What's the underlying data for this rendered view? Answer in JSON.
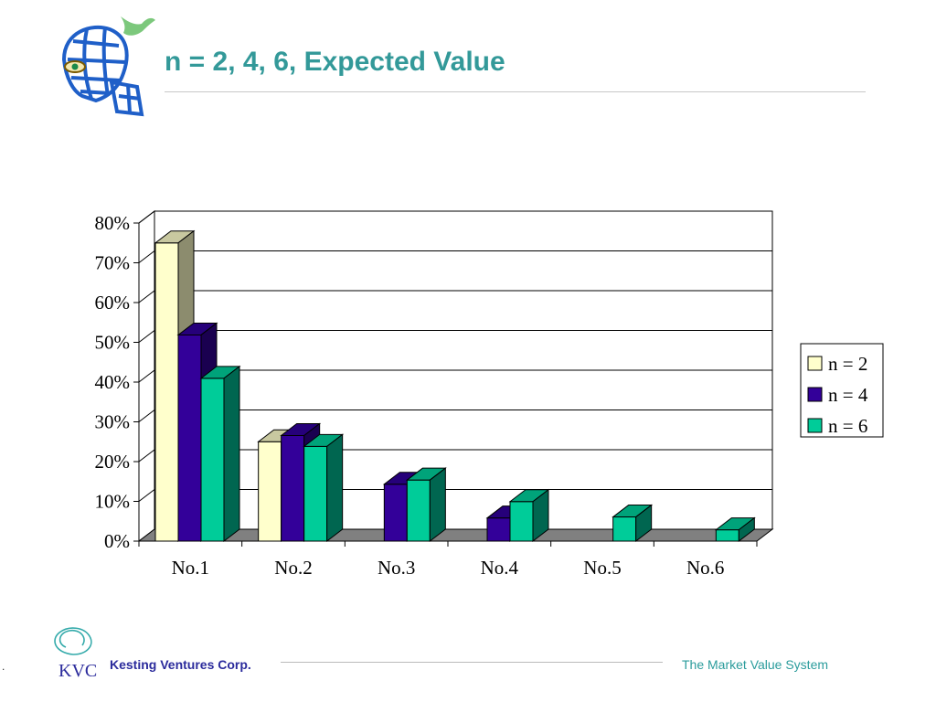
{
  "slide": {
    "title": "n = 2, 4, 6, Expected Value"
  },
  "footer": {
    "marker": ".",
    "company": "Kesting Ventures Corp.",
    "tagline": "The Market Value System",
    "logo_text": "KVC"
  },
  "icons": {
    "header_logo": "globe-head-with-eye-and-bird-icon",
    "footer_logo": "kvc-swirl-logo-icon"
  },
  "colors": {
    "title": "#339999",
    "company": "#2b2b9c",
    "tagline": "#2b9c9c",
    "floor": "#808080"
  },
  "chart_data": {
    "type": "bar",
    "style": "3d-clustered-column",
    "title": "",
    "xlabel": "",
    "ylabel": "",
    "categories": [
      "No.1",
      "No.2",
      "No.3",
      "No.4",
      "No.5",
      "No.6"
    ],
    "series": [
      {
        "name": "n = 2",
        "color": "#ffffcc",
        "side": "#8c8c6e",
        "top": "#c8c8a0",
        "values": [
          0.75,
          0.25,
          0,
          0,
          0,
          0
        ]
      },
      {
        "name": "n = 4",
        "color": "#330099",
        "side": "#1a0050",
        "top": "#26007a",
        "values": [
          0.5185,
          0.2656,
          0.1431,
          0.0582,
          0,
          0
        ]
      },
      {
        "name": "n = 6",
        "color": "#00cc99",
        "side": "#006650",
        "top": "#00a37a",
        "values": [
          0.4094,
          0.2383,
          0.1536,
          0.0994,
          0.0608,
          0.0284
        ]
      }
    ],
    "ylim": [
      0,
      0.8
    ],
    "yticks": [
      "0%",
      "10%",
      "20%",
      "30%",
      "40%",
      "50%",
      "60%",
      "70%",
      "80%"
    ],
    "grid": true,
    "legend": "right"
  }
}
